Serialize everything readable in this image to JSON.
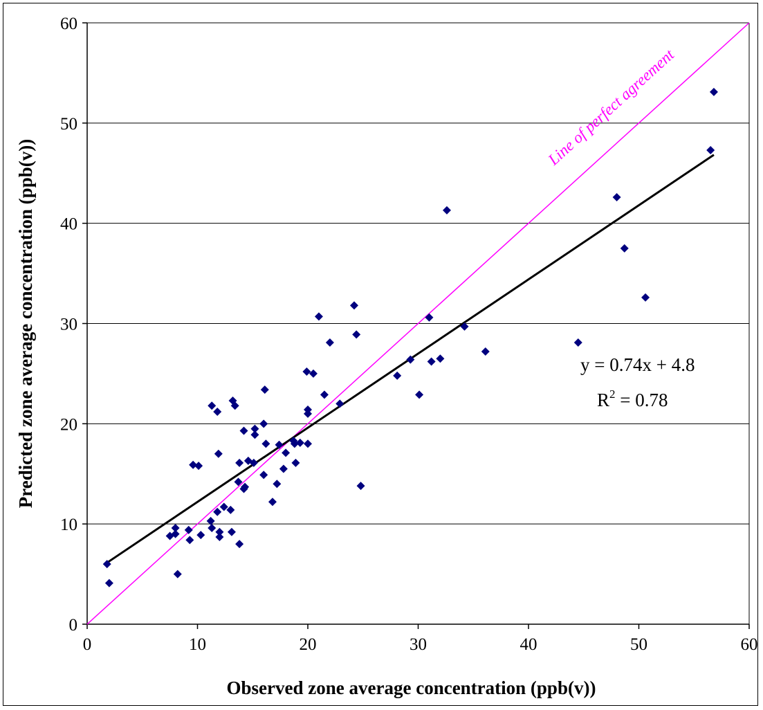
{
  "chart_data": {
    "type": "scatter",
    "xlabel": "Observed zone average concentration (ppb(v))",
    "ylabel": "Predicted zone average concentration (ppb(v))",
    "xlim": [
      0,
      60
    ],
    "ylim": [
      0,
      60
    ],
    "x_ticks": [
      0,
      10,
      20,
      30,
      40,
      50,
      60
    ],
    "y_ticks": [
      0,
      10,
      20,
      30,
      40,
      50,
      60
    ],
    "grid": "horizontal",
    "legend": "none",
    "colors": {
      "points": "#00007f",
      "trendline": "#000000",
      "reference": "#ff00ff",
      "grid": "#000000"
    },
    "series": [
      {
        "marker": "diamond",
        "points": [
          [
            1.8,
            6.0
          ],
          [
            2.0,
            4.1
          ],
          [
            7.5,
            8.8
          ],
          [
            8.0,
            9.6
          ],
          [
            8.0,
            9.0
          ],
          [
            8.2,
            5.0
          ],
          [
            9.2,
            9.4
          ],
          [
            9.3,
            8.4
          ],
          [
            9.6,
            15.9
          ],
          [
            10.1,
            15.8
          ],
          [
            10.3,
            8.9
          ],
          [
            11.2,
            10.3
          ],
          [
            11.3,
            9.6
          ],
          [
            11.3,
            21.8
          ],
          [
            11.8,
            21.2
          ],
          [
            11.8,
            11.2
          ],
          [
            11.9,
            17.0
          ],
          [
            12.0,
            9.2
          ],
          [
            12.0,
            8.7
          ],
          [
            12.4,
            11.7
          ],
          [
            13.0,
            11.4
          ],
          [
            13.1,
            9.2
          ],
          [
            13.2,
            22.3
          ],
          [
            13.4,
            21.8
          ],
          [
            13.7,
            14.2
          ],
          [
            13.8,
            8.0
          ],
          [
            13.8,
            16.1
          ],
          [
            14.2,
            19.3
          ],
          [
            14.2,
            13.5
          ],
          [
            14.3,
            13.7
          ],
          [
            14.6,
            16.3
          ],
          [
            15.1,
            16.1
          ],
          [
            15.2,
            19.5
          ],
          [
            15.2,
            18.9
          ],
          [
            16.0,
            14.9
          ],
          [
            16.0,
            20.0
          ],
          [
            16.1,
            23.4
          ],
          [
            16.2,
            18.0
          ],
          [
            16.8,
            12.2
          ],
          [
            17.2,
            14.0
          ],
          [
            17.4,
            17.9
          ],
          [
            17.8,
            15.5
          ],
          [
            18.0,
            17.1
          ],
          [
            18.7,
            18.3
          ],
          [
            18.8,
            18.0
          ],
          [
            18.9,
            16.1
          ],
          [
            19.3,
            18.1
          ],
          [
            19.9,
            25.2
          ],
          [
            20.0,
            21.0
          ],
          [
            20.0,
            21.4
          ],
          [
            20.0,
            18.0
          ],
          [
            20.5,
            25.0
          ],
          [
            21.0,
            30.7
          ],
          [
            21.5,
            22.9
          ],
          [
            22.0,
            28.1
          ],
          [
            22.9,
            22.0
          ],
          [
            24.2,
            31.8
          ],
          [
            24.4,
            28.9
          ],
          [
            24.8,
            13.8
          ],
          [
            28.1,
            24.8
          ],
          [
            29.3,
            26.4
          ],
          [
            30.1,
            22.9
          ],
          [
            31.0,
            30.6
          ],
          [
            31.2,
            26.2
          ],
          [
            32.0,
            26.5
          ],
          [
            32.6,
            41.3
          ],
          [
            34.2,
            29.7
          ],
          [
            36.1,
            27.2
          ],
          [
            44.5,
            28.1
          ],
          [
            48.0,
            42.6
          ],
          [
            48.7,
            37.5
          ],
          [
            50.6,
            32.6
          ],
          [
            56.5,
            47.3
          ],
          [
            56.8,
            53.1
          ]
        ]
      }
    ],
    "trendline": {
      "slope": 0.74,
      "intercept": 4.8,
      "x_range": [
        1.8,
        56.8
      ]
    },
    "reference_line": {
      "slope": 1,
      "intercept": 0
    },
    "annotations": {
      "equation": "y = 0.74x + 4.8",
      "r2_prefix": "R",
      "r2_superscript": "2",
      "r2_suffix": " = 0.78",
      "reference_label": "Line of perfect agreement"
    }
  }
}
